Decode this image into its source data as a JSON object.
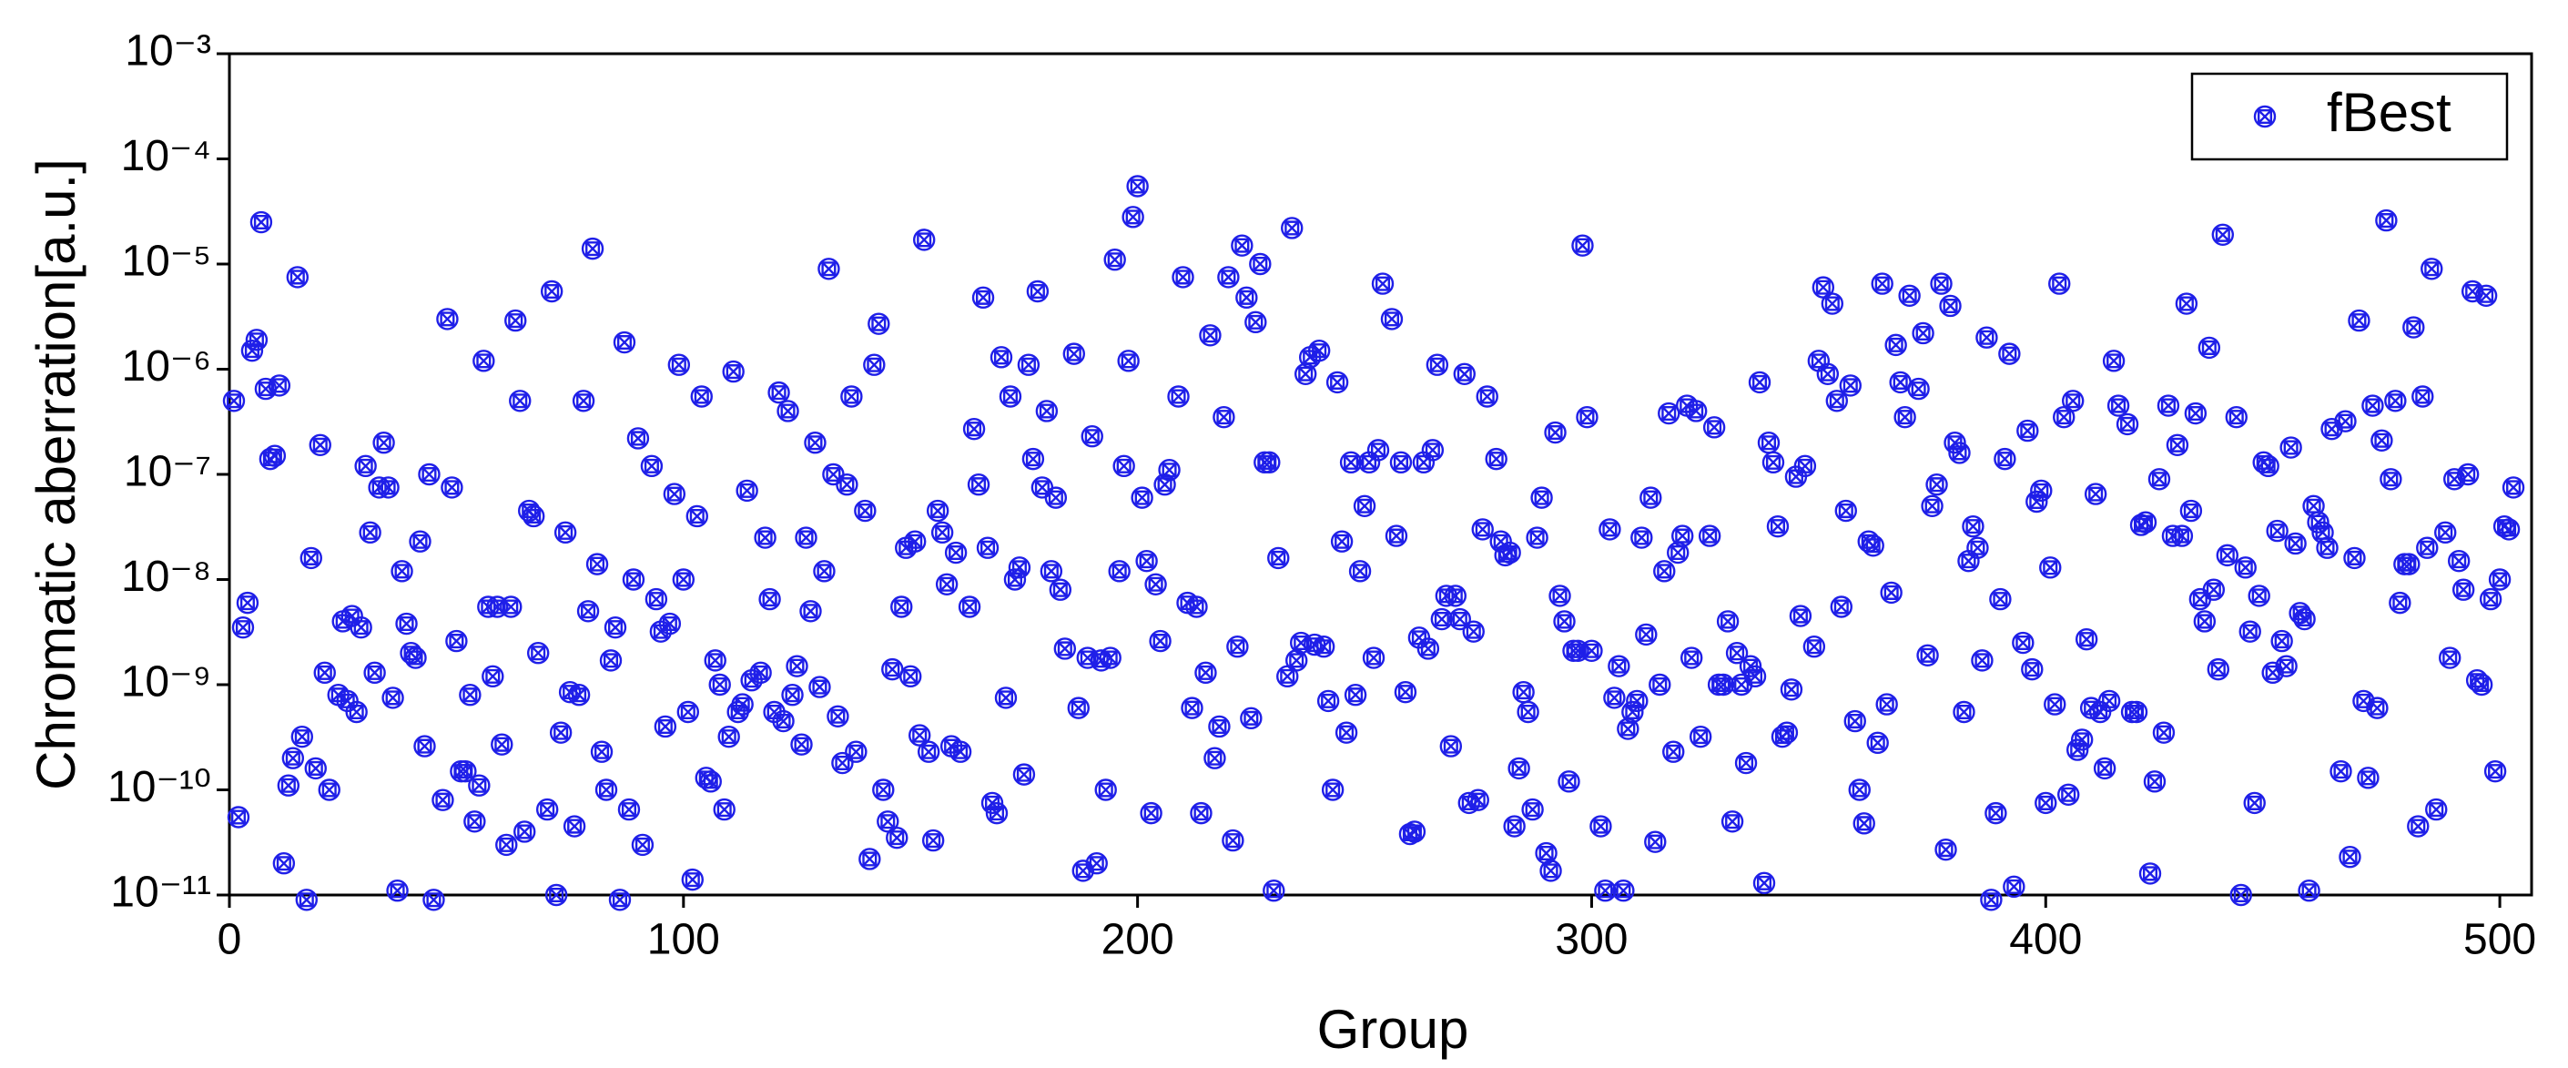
{
  "chart_data": {
    "type": "scatter",
    "ylabel": "Chromatic aberration[a.u.]",
    "xlabel": "Group",
    "xlim": [
      0,
      507
    ],
    "xticks": [
      0,
      100,
      200,
      300,
      400,
      500
    ],
    "ylim": [
      1e-11,
      0.001
    ],
    "log_y": true,
    "yticks": [
      {
        "value": 1e-11,
        "label": "10⁻¹¹"
      },
      {
        "value": 1e-10,
        "label": "10⁻¹⁰"
      },
      {
        "value": 1e-09,
        "label": "10⁻⁹"
      },
      {
        "value": 1e-08,
        "label": "10⁻⁸"
      },
      {
        "value": 1e-07,
        "label": "10⁻⁷"
      },
      {
        "value": 1e-06,
        "label": "10⁻⁶"
      },
      {
        "value": 1e-05,
        "label": "10⁻⁵"
      },
      {
        "value": 0.0001,
        "label": "10⁻⁴"
      },
      {
        "value": 0.001,
        "label": "10⁻³"
      }
    ],
    "grid": false,
    "legend": "top-right",
    "x": [
      1,
      2,
      3,
      4,
      5,
      6,
      7,
      8,
      9,
      10,
      11,
      12,
      13,
      14,
      15,
      16,
      17,
      18,
      19,
      20,
      21,
      22,
      24,
      25,
      26,
      27,
      28,
      29,
      30,
      31,
      32,
      33,
      34,
      35,
      36,
      37,
      38,
      39,
      40,
      41,
      42,
      43,
      44,
      45,
      47,
      48,
      49,
      50,
      51,
      52,
      53,
      54,
      55,
      56,
      57,
      58,
      59,
      60,
      61,
      62,
      63,
      64,
      65,
      66,
      67,
      68,
      70,
      71,
      72,
      73,
      74,
      75,
      76,
      77,
      78,
      79,
      80,
      81,
      82,
      83,
      84,
      85,
      86,
      87,
      88,
      89,
      90,
      91,
      93,
      94,
      95,
      96,
      97,
      98,
      99,
      100,
      101,
      102,
      103,
      104,
      105,
      106,
      107,
      108,
      109,
      110,
      111,
      112,
      113,
      114,
      115,
      117,
      118,
      119,
      120,
      121,
      122,
      123,
      124,
      125,
      126,
      127,
      128,
      129,
      130,
      131,
      132,
      133,
      134,
      135,
      136,
      137,
      138,
      140,
      141,
      142,
      143,
      144,
      145,
      146,
      147,
      148,
      149,
      150,
      151,
      152,
      153,
      154,
      155,
      156,
      157,
      158,
      159,
      160,
      161,
      163,
      164,
      165,
      166,
      167,
      168,
      169,
      170,
      171,
      172,
      173,
      174,
      175,
      176,
      177,
      178,
      179,
      180,
      181,
      182,
      183,
      184,
      186,
      187,
      188,
      189,
      190,
      191,
      192,
      193,
      194,
      195,
      196,
      197,
      198,
      199,
      200,
      201,
      202,
      203,
      204,
      205,
      206,
      207,
      209,
      210,
      211,
      212,
      213,
      214,
      215,
      216,
      217,
      218,
      219,
      220,
      221,
      222,
      223,
      224,
      225,
      226,
      227,
      228,
      229,
      230,
      231,
      233,
      234,
      235,
      236,
      237,
      238,
      239,
      240,
      241,
      242,
      243,
      244,
      245,
      246,
      247,
      248,
      249,
      250,
      251,
      252,
      253,
      254,
      256,
      257,
      258,
      259,
      260,
      261,
      262,
      263,
      264,
      265,
      266,
      267,
      268,
      269,
      270,
      271,
      272,
      273,
      274,
      275,
      276,
      277,
      279,
      280,
      281,
      282,
      283,
      284,
      285,
      286,
      287,
      288,
      289,
      290,
      291,
      292,
      293,
      294,
      295,
      296,
      297,
      298,
      299,
      300,
      302,
      303,
      304,
      305,
      306,
      307,
      308,
      309,
      310,
      311,
      312,
      313,
      314,
      315,
      316,
      317,
      318,
      319,
      320,
      321,
      322,
      323,
      324,
      326,
      327,
      328,
      329,
      330,
      331,
      332,
      333,
      334,
      335,
      336,
      337,
      338,
      339,
      340,
      341,
      342,
      343,
      344,
      345,
      346,
      347,
      349,
      350,
      351,
      352,
      353,
      354,
      355,
      356,
      357,
      358,
      359,
      360,
      361,
      362,
      363,
      364,
      365,
      366,
      367,
      368,
      369,
      370,
      372,
      373,
      374,
      375,
      376,
      377,
      378,
      379,
      380,
      381,
      382,
      383,
      384,
      385,
      386,
      387,
      388,
      389,
      390,
      391,
      392,
      393,
      395,
      396,
      397,
      398,
      399,
      400,
      401,
      402,
      403,
      404,
      405,
      406,
      407,
      408,
      409,
      410,
      411,
      412,
      413,
      414,
      415,
      416,
      418,
      419,
      420,
      421,
      422,
      423,
      424,
      425,
      426,
      427,
      428,
      429,
      430,
      431,
      432,
      433,
      434,
      435,
      436,
      437,
      438,
      439,
      440,
      442,
      443,
      444,
      445,
      446,
      447,
      448,
      449,
      450,
      451,
      452,
      453,
      454,
      455,
      456,
      457,
      458,
      459,
      460,
      461,
      462,
      463,
      465,
      466,
      467,
      468,
      469,
      470,
      471,
      472,
      473,
      474,
      475,
      476,
      477,
      478,
      479,
      480,
      481,
      482,
      483,
      484,
      485,
      486,
      488,
      489,
      490,
      491,
      492,
      493,
      494,
      495,
      496,
      497,
      498,
      499,
      500,
      501,
      502,
      503
    ],
    "series": [
      {
        "name": "fBest",
        "color": "#1f1fe8",
        "values": [
          5e-07,
          5.5e-11,
          3.5e-09,
          6e-09,
          1.5e-06,
          1.9e-06,
          2.5e-05,
          6.5e-07,
          1.4e-07,
          1.5e-07,
          7e-07,
          2e-11,
          1.1e-10,
          2e-10,
          7.5e-06,
          3.2e-10,
          9e-12,
          1.6e-08,
          1.6e-10,
          1.9e-07,
          1.3e-09,
          1e-10,
          8e-10,
          4e-09,
          7e-10,
          4.5e-09,
          5.5e-10,
          3.5e-09,
          1.2e-07,
          2.8e-08,
          1.3e-09,
          7.5e-08,
          2e-07,
          7.5e-08,
          7.5e-10,
          1.1e-11,
          1.2e-08,
          3.8e-09,
          2e-09,
          1.8e-09,
          2.3e-08,
          2.6e-10,
          1e-07,
          9e-12,
          8e-11,
          3e-06,
          7.5e-08,
          2.6e-09,
          1.5e-10,
          1.5e-10,
          8e-10,
          5e-11,
          1.1e-10,
          1.2e-06,
          5.5e-09,
          1.2e-09,
          5.5e-09,
          2.7e-10,
          3e-11,
          5.5e-09,
          2.9e-06,
          5e-07,
          4e-11,
          4.5e-08,
          4e-08,
          2e-09,
          6.5e-11,
          5.5e-06,
          1e-11,
          3.5e-10,
          2.8e-08,
          8.5e-10,
          4.5e-11,
          8e-10,
          5e-07,
          5e-09,
          1.4e-05,
          1.4e-08,
          2.3e-10,
          1e-10,
          1.7e-09,
          3.5e-09,
          9e-12,
          1.8e-06,
          6.5e-11,
          1e-08,
          2.2e-07,
          3e-11,
          1.2e-07,
          6.5e-09,
          3.2e-09,
          4e-10,
          3.8e-09,
          6.5e-08,
          1.1e-06,
          1e-08,
          5.5e-10,
          1.4e-11,
          4e-08,
          5.5e-07,
          1.3e-10,
          1.2e-10,
          1.7e-09,
          1e-09,
          6.5e-11,
          3.2e-10,
          9.5e-07,
          5.5e-10,
          6.5e-10,
          7e-08,
          1.1e-09,
          1.3e-09,
          2.5e-08,
          6.5e-09,
          5.5e-10,
          6e-07,
          4.5e-10,
          4e-07,
          8e-10,
          1.5e-09,
          2.7e-10,
          2.5e-08,
          5e-09,
          2e-07,
          9.5e-10,
          1.2e-08,
          9e-06,
          1e-07,
          5e-10,
          1.8e-10,
          8e-08,
          5.5e-07,
          2.3e-10,
          4.5e-08,
          2.2e-11,
          1.1e-06,
          2.7e-06,
          1e-10,
          5e-11,
          1.4e-09,
          3.5e-11,
          5.5e-09,
          2e-08,
          1.2e-09,
          2.3e-08,
          3.3e-10,
          1.7e-05,
          2.3e-10,
          3.3e-11,
          4.5e-08,
          2.8e-08,
          9e-09,
          2.6e-10,
          1.8e-08,
          2.3e-10,
          5.5e-09,
          2.7e-07,
          8e-08,
          4.8e-06,
          2e-08,
          7.5e-11,
          6e-11,
          1.3e-06,
          7.5e-10,
          5.5e-07,
          1e-08,
          1.3e-08,
          1.4e-10,
          1.1e-06,
          1.4e-07,
          5.5e-06,
          7.5e-08,
          4e-07,
          1.2e-08,
          6e-08,
          8e-09,
          2.2e-09,
          1.4e-06,
          6e-10,
          1.7e-11,
          1.8e-09,
          2.3e-07,
          2e-11,
          1.7e-09,
          1e-10,
          1.8e-09,
          1.1e-05,
          1.2e-08,
          1.2e-07,
          1.2e-06,
          2.8e-05,
          5.5e-05,
          6e-08,
          1.5e-08,
          6e-11,
          9e-09,
          2.6e-09,
          8e-08,
          1.1e-07,
          5.5e-07,
          7.5e-06,
          6e-09,
          6e-10,
          5.5e-09,
          6e-11,
          1.3e-09,
          2.1e-06,
          2e-10,
          4e-10,
          3.5e-07,
          7.5e-06,
          3.3e-11,
          2.3e-09,
          1.5e-05,
          4.8e-06,
          4.8e-10,
          2.8e-06,
          1e-05,
          1.3e-07,
          1.3e-07,
          1.1e-11,
          1.6e-08,
          1.2e-09,
          2.2e-05,
          1.7e-09,
          2.5e-09,
          9e-07,
          1.3e-06,
          2.4e-09,
          1.5e-06,
          2.3e-09,
          7e-10,
          1e-10,
          7.5e-07,
          2.3e-08,
          3.5e-10,
          1.3e-07,
          8e-10,
          1.2e-08,
          5e-08,
          1.3e-07,
          1.8e-09,
          1.7e-07,
          6.5e-06,
          3e-06,
          2.6e-08,
          1.3e-07,
          8.5e-10,
          3.8e-11,
          4e-11,
          2.8e-09,
          1.3e-07,
          2.2e-09,
          1.7e-07,
          1.1e-06,
          4.2e-09,
          7e-09,
          2.6e-10,
          7e-09,
          4.2e-09,
          9e-07,
          7.5e-11,
          3.2e-09,
          8e-11,
          3e-08,
          5.5e-07,
          1.4e-07,
          2.3e-08,
          1.7e-08,
          1.8e-08,
          4.5e-11,
          1.6e-10,
          8.5e-10,
          5.5e-10,
          6.5e-11,
          2.5e-08,
          6e-08,
          2.5e-11,
          1.7e-11,
          2.5e-07,
          7e-09,
          4e-09,
          1.2e-10,
          2.1e-09,
          2.1e-09,
          1.5e-05,
          3.5e-07,
          2.1e-09,
          4.5e-11,
          1.1e-11,
          3e-08,
          7.5e-10,
          1.5e-09,
          1.1e-11,
          3.8e-10,
          5.5e-10,
          7e-10,
          2.5e-08,
          3e-09,
          6e-08,
          3.2e-11,
          1e-09,
          1.2e-08,
          3.8e-07,
          2.3e-10,
          1.8e-08,
          2.6e-08,
          4.5e-07,
          1.8e-09,
          4e-07,
          3.2e-10,
          2.6e-08,
          2.8e-07,
          1e-09,
          1e-09,
          4e-09,
          5e-11,
          2e-09,
          1e-09,
          1.8e-10,
          1.5e-09,
          1.2e-09,
          7.5e-07,
          1.3e-11,
          2e-07,
          1.3e-07,
          3.2e-08,
          3.2e-10,
          3.5e-10,
          9e-10,
          9.5e-08,
          4.5e-09,
          1.2e-07,
          2.3e-09,
          1.2e-06,
          6e-06,
          9e-07,
          4.2e-06,
          5e-07,
          5.5e-09,
          4.5e-08,
          7e-07,
          4.5e-10,
          1e-10,
          4.8e-11,
          2.3e-08,
          2.1e-08,
          2.8e-10,
          6.5e-06,
          6.5e-10,
          7.5e-09,
          1.7e-06,
          7.5e-07,
          3.5e-07,
          5e-06,
          6.5e-07,
          2.2e-06,
          1.9e-09,
          5e-08,
          8e-08,
          6.5e-06,
          2.7e-11,
          4e-06,
          2e-07,
          1.6e-07,
          5.5e-10,
          1.5e-08,
          3.2e-08,
          2e-08,
          1.7e-09,
          2e-06,
          9e-12,
          6e-11,
          6.5e-09,
          1.4e-07,
          1.4e-06,
          1.2e-11,
          2.5e-09,
          2.6e-07,
          1.4e-09,
          5.5e-08,
          7e-08,
          7.5e-11,
          1.3e-08,
          6.5e-10,
          6.5e-06,
          3.5e-07,
          9e-11,
          5e-07,
          2.4e-10,
          3e-10,
          2.7e-09,
          6e-10,
          6.5e-08,
          5.5e-10,
          1.6e-10,
          7e-10,
          1.2e-06,
          4.5e-07,
          3e-07,
          5.5e-10,
          5.5e-10,
          3.3e-08,
          3.5e-08,
          1.6e-11,
          1.2e-10,
          9e-08,
          3.5e-10,
          4.5e-07,
          2.6e-08,
          1.9e-07,
          2.6e-08,
          4.2e-06,
          4.5e-08,
          3.8e-07,
          6.5e-09,
          4e-09,
          1.6e-06,
          8e-09,
          1.4e-09,
          1.9e-05,
          1.7e-08,
          3.5e-07,
          1e-11,
          1.3e-08,
          3.2e-09,
          7.5e-11,
          7e-09,
          1.3e-07,
          1.2e-07,
          1.3e-09,
          2.9e-08,
          2.6e-09,
          1.5e-09,
          1.8e-07,
          2.2e-08,
          4.8e-09,
          4.2e-09,
          1.1e-11,
          5e-08,
          3.5e-08,
          2.8e-08,
          2e-08,
          2.7e-07,
          1.5e-10,
          3.2e-07,
          2.3e-11,
          1.6e-08,
          2.9e-06,
          7e-10,
          1.3e-10,
          4.5e-07,
          6e-10,
          2.1e-07,
          2.6e-05,
          9e-08,
          5e-07,
          6e-09,
          1.4e-08,
          1.4e-08,
          2.5e-06,
          4.5e-11,
          5.5e-07,
          2e-08,
          9e-06,
          6.5e-11,
          2.8e-08,
          1.8e-09,
          9e-08,
          1.5e-08,
          8e-09,
          1e-07,
          5.5e-06,
          1.1e-09,
          1e-09,
          5e-06,
          6.5e-09,
          1.5e-10,
          1e-08,
          3.2e-08,
          3e-08,
          7.5e-08
        ]
      }
    ]
  }
}
